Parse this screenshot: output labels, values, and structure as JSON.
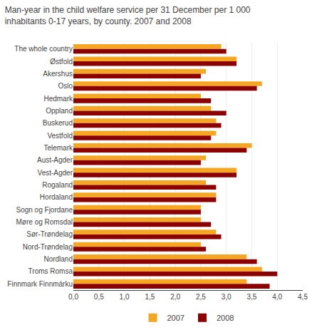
{
  "chart_data": {
    "type": "bar",
    "orientation": "horizontal",
    "title": "Man-year in the child welfare service per 31 December per 1 000\ninhabitants 0-17 years, by county. 2007 and 2008",
    "categories": [
      "The whole country",
      "Østfold",
      "Akershus",
      "Oslo",
      "Hedmark",
      "Oppland",
      "Buskerud",
      "Vestfold",
      "Telemark",
      "Aust-Agder",
      "Vest-Agder",
      "Rogaland",
      "Hordaland",
      "Sogn og Fjordane",
      "Møre og Romsdal",
      "Sør-Trøndelag",
      "Nord-Trøndelag",
      "Nordland",
      "Troms Romsa",
      "Finnmark Finnmárku"
    ],
    "series": [
      {
        "name": "2007",
        "color": "#F5A623",
        "values": [
          2.9,
          3.2,
          2.6,
          3.7,
          2.5,
          2.7,
          2.8,
          2.8,
          3.5,
          2.6,
          3.2,
          2.6,
          2.8,
          2.5,
          2.5,
          2.8,
          2.5,
          3.4,
          3.7,
          3.4
        ]
      },
      {
        "name": "2008",
        "color": "#8B0000",
        "values": [
          3.0,
          3.2,
          2.5,
          3.6,
          2.7,
          3.0,
          2.9,
          2.7,
          3.4,
          2.5,
          3.2,
          2.8,
          2.8,
          2.5,
          2.7,
          2.9,
          2.6,
          3.6,
          4.0,
          3.85
        ]
      }
    ],
    "xlim": [
      0,
      4.5
    ],
    "xticks": [
      {
        "value": 0.0,
        "label": "0,0"
      },
      {
        "value": 0.5,
        "label": "0,5"
      },
      {
        "value": 1.0,
        "label": "1,0"
      },
      {
        "value": 1.5,
        "label": "1,5"
      },
      {
        "value": 2.0,
        "label": "2,0"
      },
      {
        "value": 2.5,
        "label": "2,5"
      },
      {
        "value": 3.0,
        "label": "3,0"
      },
      {
        "value": 3.5,
        "label": "3,5"
      },
      {
        "value": 4.0,
        "label": "4,0"
      },
      {
        "value": 4.5,
        "label": "4,5"
      }
    ],
    "grid": true,
    "legend": "bottom"
  }
}
